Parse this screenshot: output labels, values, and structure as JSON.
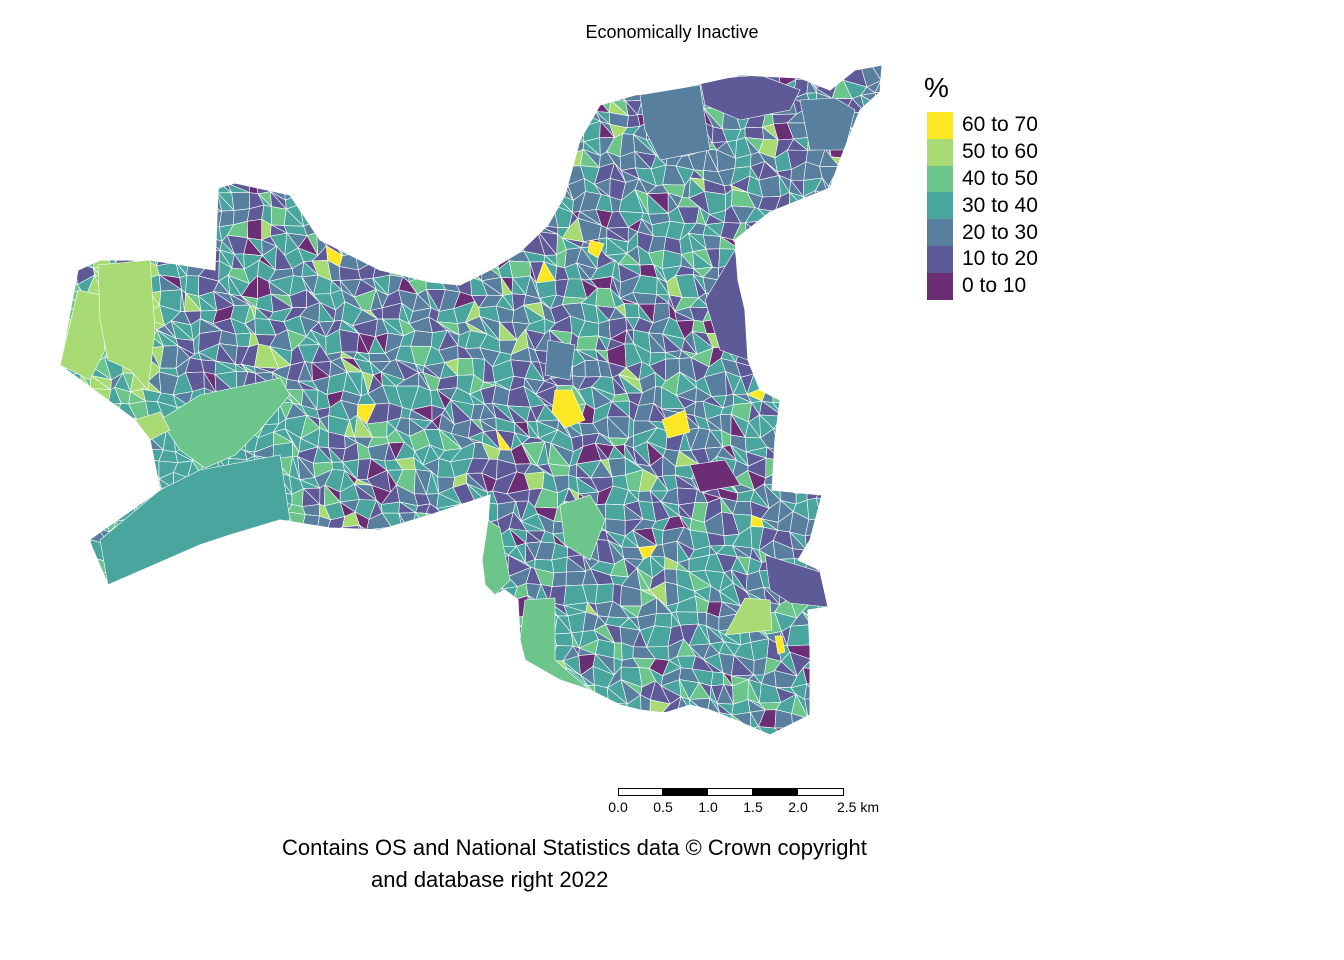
{
  "title": "Economically Inactive",
  "legend": {
    "title": "%",
    "items": [
      {
        "label": "60 to 70",
        "color": "#fde725"
      },
      {
        "label": "50 to 60",
        "color": "#a8db74"
      },
      {
        "label": "40 to 50",
        "color": "#6cc68c"
      },
      {
        "label": "30 to 40",
        "color": "#4aa59e"
      },
      {
        "label": "20 to 30",
        "color": "#597f9f"
      },
      {
        "label": "10 to 20",
        "color": "#5e5a97"
      },
      {
        "label": "0 to 10",
        "color": "#6b2d74"
      }
    ]
  },
  "scalebar": {
    "unit": "km",
    "ticks": [
      "0.0",
      "0.5",
      "1.0",
      "1.5",
      "2.0",
      "2.5 km"
    ]
  },
  "attribution": {
    "line1": "Contains OS and National Statistics data © Crown copyright",
    "line2": "and database right 2022"
  }
}
